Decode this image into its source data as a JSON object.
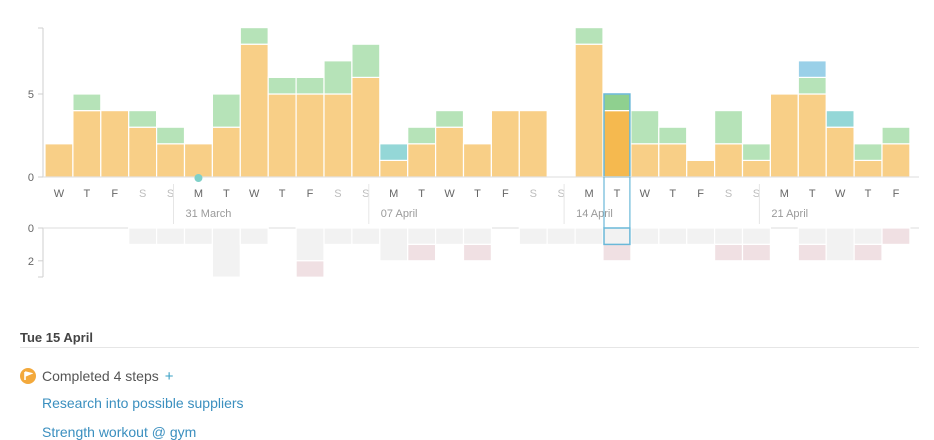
{
  "chart_data": {
    "type": "bar",
    "stacked": true,
    "y_ticks": [
      0,
      5
    ],
    "ylim": [
      0,
      9
    ],
    "lower_y_ticks": [
      0,
      2
    ],
    "lower_ylim": [
      0,
      3
    ],
    "day_letters": [
      "W",
      "T",
      "F",
      "S",
      "S",
      "M",
      "T",
      "W",
      "T",
      "F",
      "S",
      "S",
      "M",
      "T",
      "W",
      "T",
      "F",
      "S",
      "S",
      "M",
      "T",
      "W",
      "T",
      "F",
      "S",
      "S",
      "M",
      "T",
      "W",
      "T",
      "F"
    ],
    "week_labels": [
      {
        "label": "31 March",
        "start_index": 5
      },
      {
        "label": "07 April",
        "start_index": 12
      },
      {
        "label": "14 April",
        "start_index": 19
      },
      {
        "label": "21 April",
        "start_index": 26
      }
    ],
    "today_index": 5,
    "selected_index": 20,
    "series": [
      {
        "name": "orange",
        "color": "#f8cf87",
        "values": [
          2,
          4,
          4,
          3,
          2,
          2,
          3,
          8,
          5,
          5,
          5,
          6,
          1,
          2,
          3,
          2,
          4,
          4,
          0,
          8,
          4,
          2,
          2,
          1,
          2,
          1,
          5,
          5,
          3,
          1,
          2
        ]
      },
      {
        "name": "green",
        "color": "#b6e3b8",
        "values": [
          0,
          1,
          0,
          1,
          1,
          0,
          2,
          1,
          1,
          1,
          2,
          2,
          0,
          1,
          1,
          0,
          0,
          0,
          0,
          1,
          1,
          2,
          1,
          0,
          2,
          1,
          0,
          1,
          0,
          1,
          1
        ]
      },
      {
        "name": "teal",
        "color": "#94d7d7",
        "values": [
          0,
          0,
          0,
          0,
          0,
          0,
          0,
          0,
          0,
          0,
          0,
          0,
          1,
          0,
          0,
          0,
          0,
          0,
          0,
          0,
          0,
          0,
          0,
          0,
          0,
          0,
          0,
          0,
          1,
          0,
          0
        ]
      },
      {
        "name": "blue",
        "color": "#9ad0e8",
        "values": [
          0,
          0,
          0,
          0,
          0,
          0,
          0,
          0,
          0,
          0,
          0,
          0,
          0,
          0,
          0,
          0,
          0,
          0,
          0,
          0,
          0,
          0,
          0,
          0,
          0,
          0,
          0,
          1,
          0,
          0,
          0
        ]
      }
    ],
    "selected_colors": {
      "orange": "#f5b94f",
      "green": "#8fd08f",
      "outline": "#6ab8d8"
    },
    "lower_series": [
      {
        "name": "gray",
        "color": "#f2f2f2",
        "values": [
          0,
          0,
          0,
          1,
          1,
          1,
          3,
          1,
          0,
          2,
          1,
          1,
          2,
          1,
          1,
          1,
          0,
          1,
          1,
          1,
          1,
          1,
          1,
          1,
          1,
          1,
          0,
          1,
          2,
          1,
          0
        ]
      },
      {
        "name": "pink",
        "color": "#f0e0e3",
        "values": [
          0,
          0,
          0,
          0,
          0,
          0,
          0,
          0,
          0,
          1,
          0,
          0,
          0,
          1,
          0,
          1,
          0,
          0,
          0,
          0,
          1,
          0,
          0,
          0,
          1,
          1,
          0,
          1,
          0,
          1,
          1
        ]
      }
    ]
  },
  "detail": {
    "date": "Tue 15 April",
    "summary": "Completed 4 steps",
    "add": "+",
    "items": [
      "Research into possible suppliers",
      "Strength workout @ gym"
    ]
  }
}
